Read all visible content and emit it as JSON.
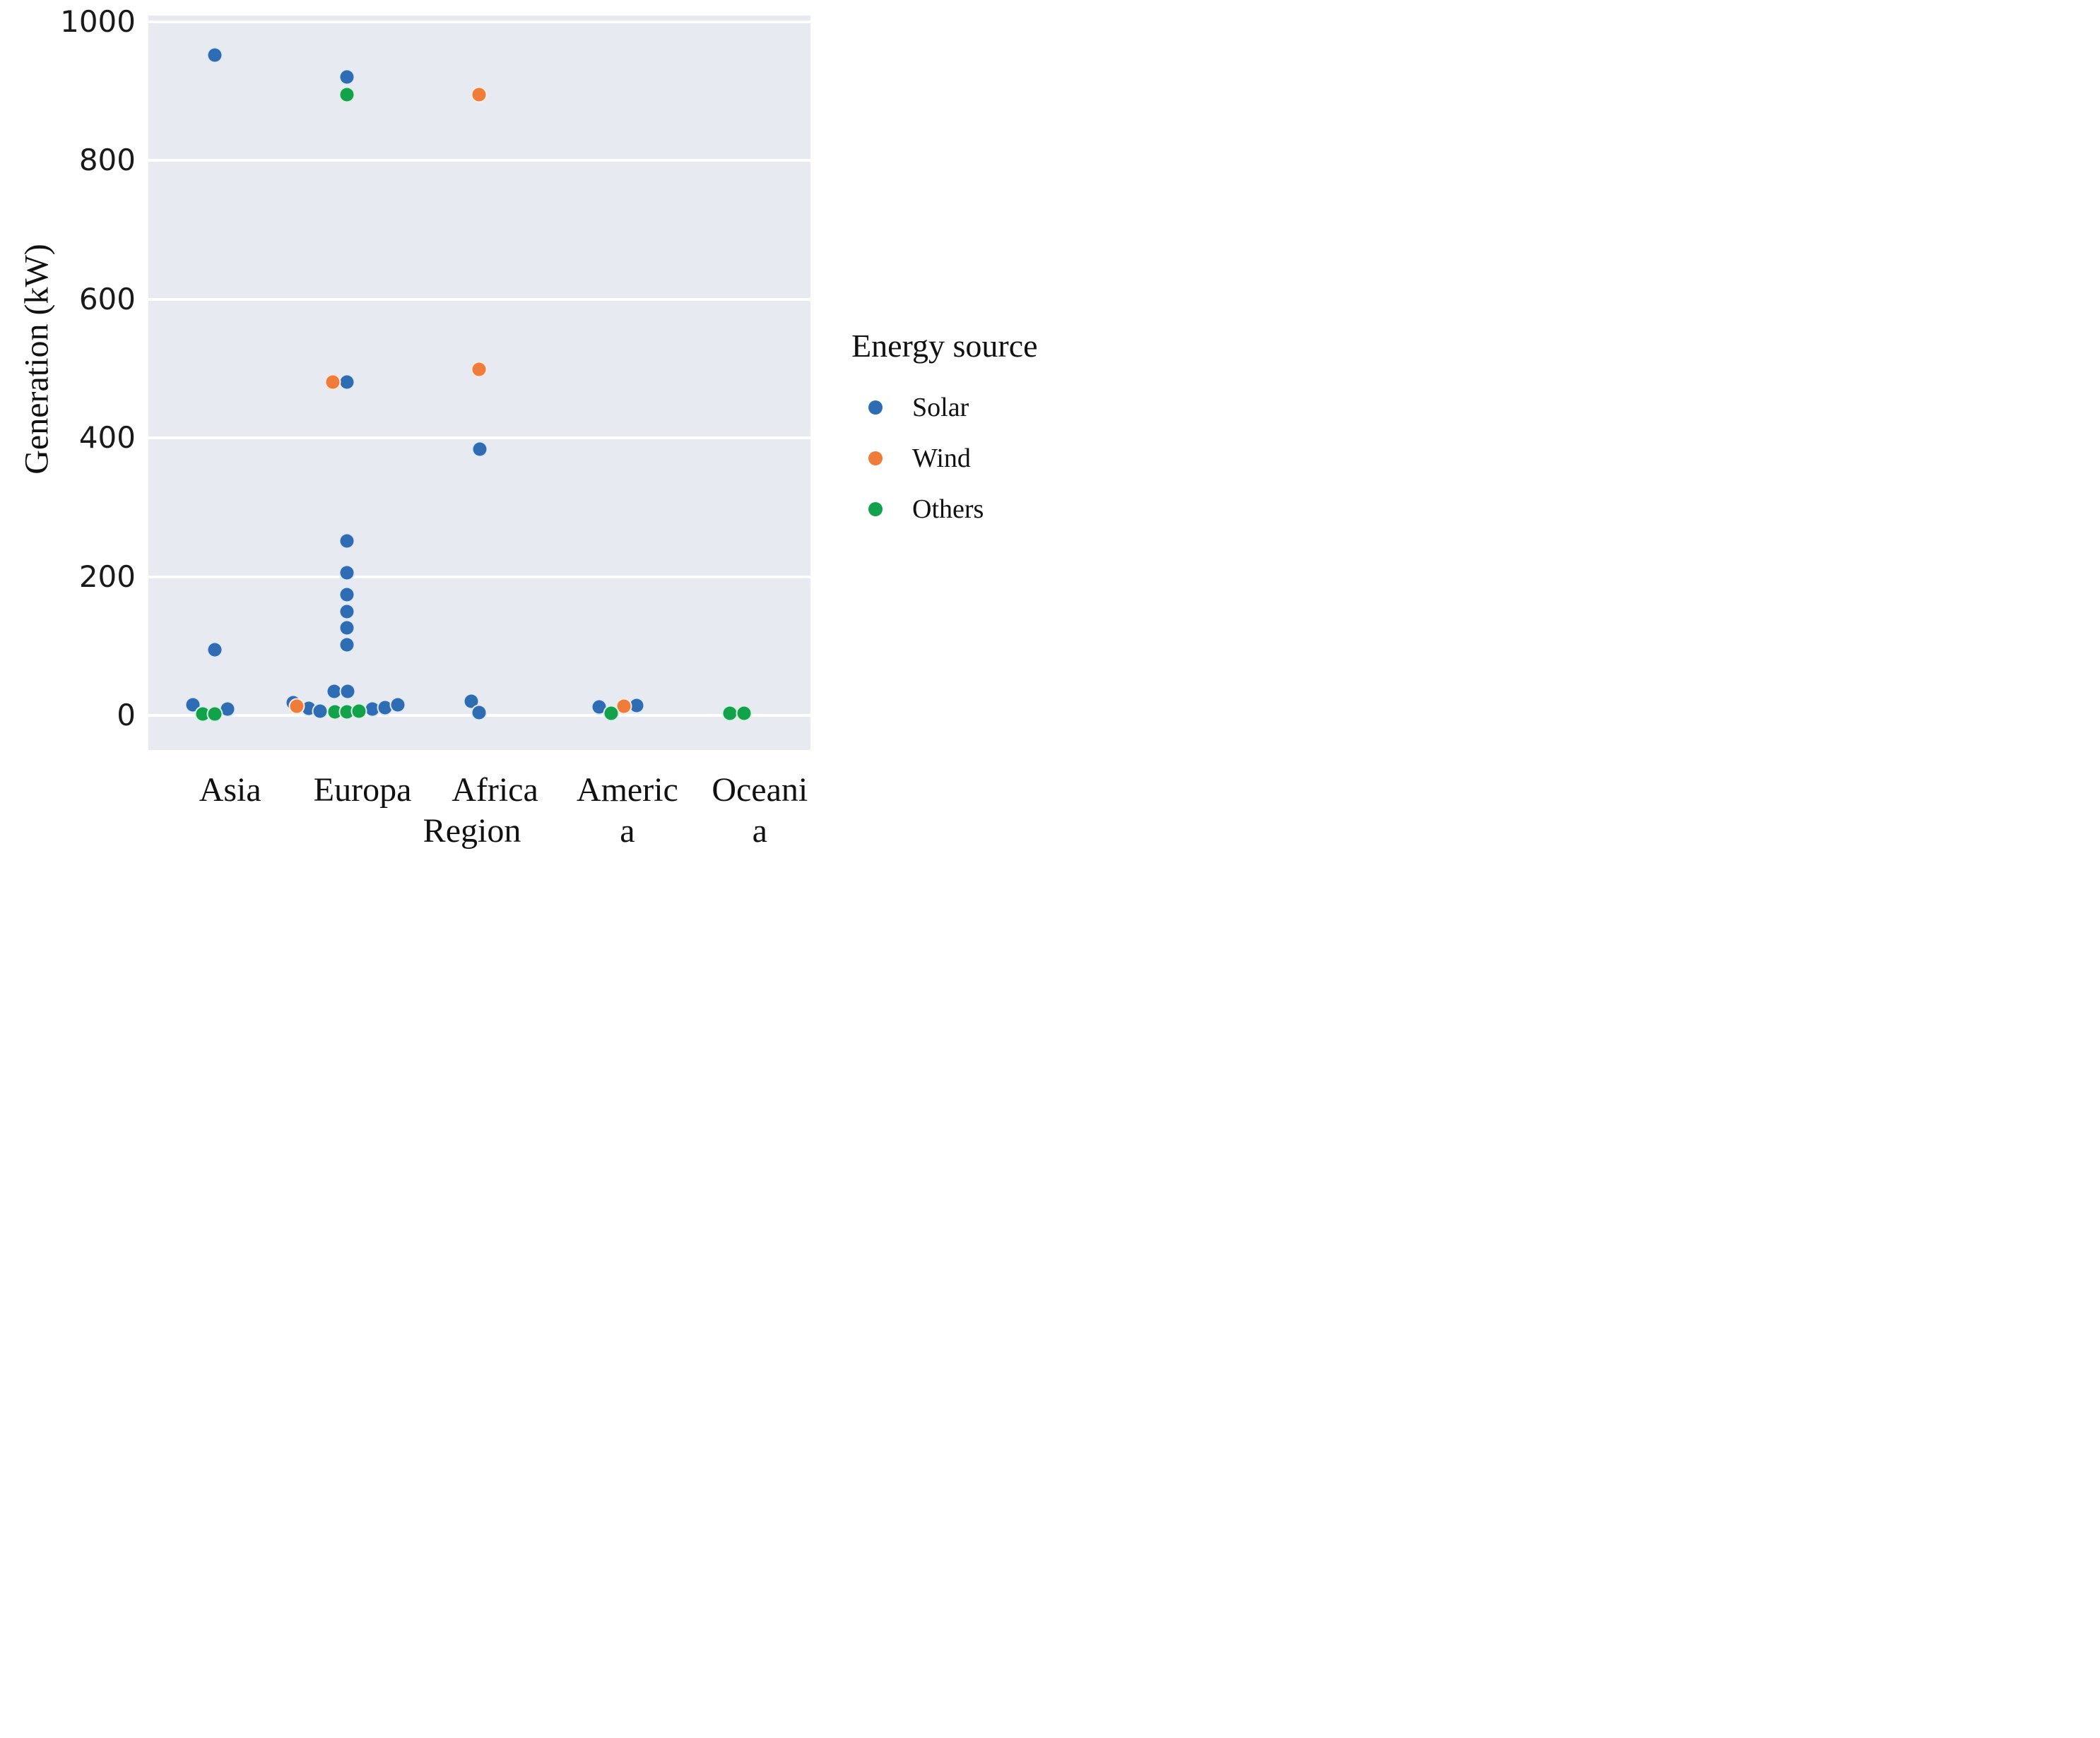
{
  "chart_data": {
    "type": "scatter",
    "subtype": "strip-plot",
    "title": "",
    "xlabel": "Region",
    "ylabel": "Generation (kW)",
    "categories": [
      "Asia",
      "Europa",
      "Africa",
      "America",
      "Oceania"
    ],
    "category_display_lines": [
      [
        "Asia"
      ],
      [
        "Europa"
      ],
      [
        "Africa"
      ],
      [
        "Americ",
        "a"
      ],
      [
        "Oceani",
        "a"
      ]
    ],
    "yticks": [
      0,
      200,
      400,
      600,
      800,
      1000
    ],
    "ylim": [
      -50,
      1010
    ],
    "grid": "horizontal-white-lines",
    "legend": {
      "title": "Energy source",
      "position": "right",
      "entries": [
        {
          "label": "Solar",
          "color": "#2e6db3"
        },
        {
          "label": "Wind",
          "color": "#ef7c3b"
        },
        {
          "label": "Others",
          "color": "#12a24b"
        }
      ]
    },
    "series": [
      {
        "name": "Solar",
        "color": "#2e6db3",
        "points": [
          {
            "category": "Asia",
            "value": 952,
            "dx": 0
          },
          {
            "category": "Asia",
            "value": 95,
            "dx": 0
          },
          {
            "category": "Asia",
            "value": 15,
            "dx": -31
          },
          {
            "category": "Asia",
            "value": 9,
            "dx": 18
          },
          {
            "category": "Europa",
            "value": 920,
            "dx": 0
          },
          {
            "category": "Europa",
            "value": 480,
            "dx": 0
          },
          {
            "category": "Europa",
            "value": 251,
            "dx": 0
          },
          {
            "category": "Europa",
            "value": 206,
            "dx": 0
          },
          {
            "category": "Europa",
            "value": 174,
            "dx": 0
          },
          {
            "category": "Europa",
            "value": 150,
            "dx": 0
          },
          {
            "category": "Europa",
            "value": 126,
            "dx": 0
          },
          {
            "category": "Europa",
            "value": 102,
            "dx": 0
          },
          {
            "category": "Europa",
            "value": 35,
            "dx": -18
          },
          {
            "category": "Europa",
            "value": 35,
            "dx": 1
          },
          {
            "category": "Europa",
            "value": 18,
            "dx": -76
          },
          {
            "category": "Europa",
            "value": 10,
            "dx": -54
          },
          {
            "category": "Europa",
            "value": 6,
            "dx": -38
          },
          {
            "category": "Europa",
            "value": 9,
            "dx": 36
          },
          {
            "category": "Europa",
            "value": 11,
            "dx": 54
          },
          {
            "category": "Europa",
            "value": 15,
            "dx": 72
          },
          {
            "category": "Africa",
            "value": 384,
            "dx": 0
          },
          {
            "category": "Africa",
            "value": 20,
            "dx": -12
          },
          {
            "category": "Africa",
            "value": 4,
            "dx": -1
          },
          {
            "category": "America",
            "value": 12,
            "dx": -18
          },
          {
            "category": "America",
            "value": 14,
            "dx": 35
          }
        ]
      },
      {
        "name": "Wind",
        "color": "#ef7c3b",
        "points": [
          {
            "category": "Europa",
            "value": 480,
            "dx": -20
          },
          {
            "category": "Europa",
            "value": 13,
            "dx": -71
          },
          {
            "category": "Africa",
            "value": 895,
            "dx": -1
          },
          {
            "category": "Africa",
            "value": 499,
            "dx": -1
          },
          {
            "category": "America",
            "value": 13,
            "dx": 17
          }
        ]
      },
      {
        "name": "Others",
        "color": "#12a24b",
        "points": [
          {
            "category": "Asia",
            "value": 2,
            "dx": -17
          },
          {
            "category": "Asia",
            "value": 2,
            "dx": 0
          },
          {
            "category": "Europa",
            "value": 895,
            "dx": 0
          },
          {
            "category": "Europa",
            "value": 5,
            "dx": -17
          },
          {
            "category": "Europa",
            "value": 5,
            "dx": 0
          },
          {
            "category": "Europa",
            "value": 6,
            "dx": 17
          },
          {
            "category": "America",
            "value": 3,
            "dx": -1
          },
          {
            "category": "Oceania",
            "value": 3,
            "dx": -20
          },
          {
            "category": "Oceania",
            "value": 3,
            "dx": 0
          }
        ]
      }
    ],
    "colors": {
      "figure_background": "#ffffff",
      "plot_background": "#e8eaf2",
      "gridline": "#ffffff",
      "text": "#111111"
    }
  }
}
